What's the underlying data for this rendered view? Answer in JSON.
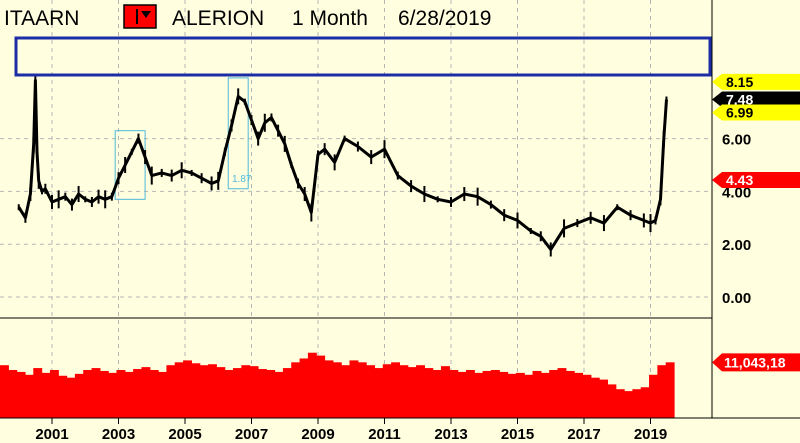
{
  "header": {
    "symbol": "ITAARN",
    "name": "ALERION",
    "period": "1 Month",
    "date": "6/28/2019",
    "menu_icon": "dropdown-icon"
  },
  "colors": {
    "background": "#ffffe0",
    "grid": "#b5b5b5",
    "price_line": "#000000",
    "volume": "#ff0000",
    "highlight_box": "#1c2ea6",
    "pattern_box": "#4fb8d9",
    "tag_yellow": "#ffff00",
    "tag_black": "#000000",
    "tag_red": "#ff0000"
  },
  "chart_data": [
    {
      "type": "line",
      "panel": "price",
      "x_ticks": [
        "2001",
        "2003",
        "2005",
        "2007",
        "2009",
        "2011",
        "2013",
        "2015",
        "2017",
        "2019"
      ],
      "y_ticks": [
        "0.00",
        "2.00",
        "4.00",
        "6.00"
      ],
      "ylim": [
        -0.5,
        8.3
      ],
      "grid": true,
      "series": [
        {
          "x": [
            2000.0,
            2000.2,
            2000.35,
            2000.45,
            2000.5,
            2000.55,
            2000.6,
            2000.7,
            2000.8,
            2001.0,
            2001.2,
            2001.4,
            2001.6,
            2001.8,
            2002.0,
            2002.2,
            2002.4,
            2002.6,
            2002.8,
            2003.0,
            2003.2,
            2003.4,
            2003.6,
            2003.8,
            2004.0,
            2004.3,
            2004.6,
            2004.9,
            2005.2,
            2005.5,
            2005.8,
            2006.0,
            2006.2,
            2006.4,
            2006.6,
            2006.8,
            2007.0,
            2007.2,
            2007.4,
            2007.6,
            2007.8,
            2008.0,
            2008.2,
            2008.4,
            2008.6,
            2008.8,
            2009.0,
            2009.2,
            2009.5,
            2009.8,
            2010.2,
            2010.6,
            2011.0,
            2011.4,
            2011.8,
            2012.2,
            2012.6,
            2013.0,
            2013.4,
            2013.8,
            2014.2,
            2014.6,
            2015.0,
            2015.4,
            2015.7,
            2016.0,
            2016.4,
            2016.8,
            2017.2,
            2017.6,
            2018.0,
            2018.4,
            2018.8,
            2019.0,
            2019.15,
            2019.3,
            2019.4,
            2019.48
          ],
          "values": [
            3.4,
            3.0,
            3.9,
            5.8,
            8.2,
            5.5,
            4.4,
            4.0,
            4.1,
            3.6,
            3.7,
            3.8,
            3.5,
            3.9,
            3.7,
            3.6,
            3.8,
            3.7,
            3.8,
            4.5,
            5.0,
            5.5,
            6.0,
            5.3,
            4.6,
            4.7,
            4.6,
            4.8,
            4.7,
            4.5,
            4.3,
            4.4,
            5.5,
            6.5,
            7.6,
            7.4,
            6.7,
            6.0,
            6.6,
            6.8,
            6.3,
            5.8,
            5.0,
            4.3,
            3.9,
            3.2,
            5.4,
            5.6,
            5.1,
            6.0,
            5.7,
            5.3,
            5.6,
            4.6,
            4.2,
            3.9,
            3.7,
            3.6,
            3.9,
            3.8,
            3.5,
            3.1,
            2.9,
            2.5,
            2.3,
            1.8,
            2.6,
            2.8,
            3.0,
            2.8,
            3.4,
            3.1,
            2.9,
            2.8,
            2.9,
            3.7,
            6.0,
            7.48
          ]
        }
      ],
      "annotations": [
        "1.87"
      ],
      "price_tags": [
        "8.15",
        "7.48",
        "6.99",
        "4.43"
      ]
    },
    {
      "type": "bar",
      "panel": "volume",
      "last_value_label": "11,043,18",
      "values": [
        0.55,
        0.5,
        0.48,
        0.45,
        0.52,
        0.47,
        0.5,
        0.44,
        0.42,
        0.46,
        0.5,
        0.52,
        0.49,
        0.47,
        0.5,
        0.48,
        0.51,
        0.53,
        0.5,
        0.48,
        0.55,
        0.58,
        0.6,
        0.57,
        0.55,
        0.56,
        0.53,
        0.5,
        0.52,
        0.55,
        0.54,
        0.51,
        0.5,
        0.48,
        0.52,
        0.58,
        0.62,
        0.68,
        0.65,
        0.6,
        0.58,
        0.55,
        0.6,
        0.58,
        0.55,
        0.52,
        0.56,
        0.58,
        0.55,
        0.53,
        0.55,
        0.52,
        0.5,
        0.54,
        0.5,
        0.48,
        0.5,
        0.47,
        0.49,
        0.5,
        0.48,
        0.46,
        0.47,
        0.45,
        0.49,
        0.47,
        0.5,
        0.52,
        0.49,
        0.47,
        0.45,
        0.42,
        0.4,
        0.35,
        0.3,
        0.28,
        0.3,
        0.32,
        0.45,
        0.55,
        0.58
      ]
    }
  ]
}
